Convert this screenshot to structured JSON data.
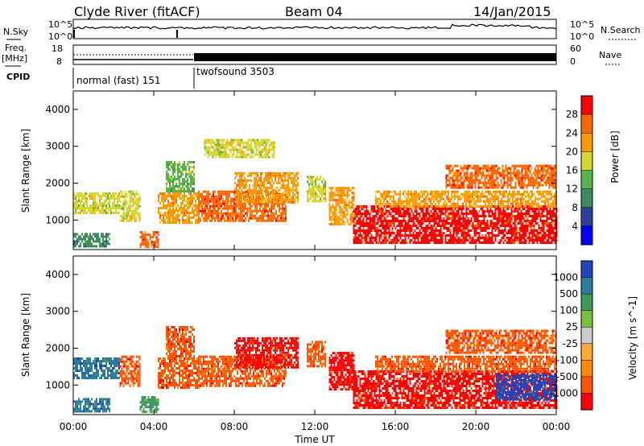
{
  "header": {
    "station": "Clyde River (fitACF)",
    "beam": "Beam 04",
    "date": "14/Jan/2015"
  },
  "top_panels": {
    "nsky_label": "N.Sky",
    "nsearch_label": "N.Search",
    "nsky_ticks": [
      "10^5",
      "10^0"
    ],
    "nsearch_ticks": [
      "10^5",
      "10^0"
    ],
    "freq_label_1": "Freq.",
    "freq_label_2": "[MHz]",
    "freq_ticks": [
      "18",
      "8"
    ],
    "nave_label": "Nave",
    "nave_ticks": [
      "60",
      "0"
    ],
    "cpid_label": "CPID",
    "cpid_modes": [
      {
        "name": "normal (fast) 151",
        "start_hour": 0,
        "end_hour": 6
      },
      {
        "name": "twofsound 3503",
        "start_hour": 6,
        "end_hour": 24
      }
    ]
  },
  "chart_data": [
    {
      "type": "heatmap",
      "title": "",
      "xlabel": "Time UT",
      "ylabel": "Slant Range [km]",
      "x_ticks": [
        "00:00",
        "04:00",
        "08:00",
        "12:00",
        "16:00",
        "20:00",
        "00:00"
      ],
      "y_ticks": [
        "1000",
        "2000",
        "3000",
        "4000"
      ],
      "xlim": [
        0,
        24
      ],
      "ylim": [
        200,
        4500
      ],
      "colorbar": {
        "label": "Power [dB]",
        "ticks": [
          "4",
          "8",
          "12",
          "16",
          "20",
          "24",
          "28"
        ],
        "range": [
          0,
          30
        ],
        "colors": [
          "#0000ff",
          "#2e3f9a",
          "#3f8a5c",
          "#58b34a",
          "#d6d633",
          "#ff9900",
          "#ff6600",
          "#ff0000"
        ]
      },
      "echo_regions": [
        {
          "t0": 0.0,
          "t1": 2.3,
          "r0": 1200,
          "r1": 1750,
          "value": 16
        },
        {
          "t0": 0.0,
          "t1": 1.8,
          "r0": 300,
          "r1": 650,
          "value": 10
        },
        {
          "t0": 2.3,
          "t1": 3.3,
          "r0": 1000,
          "r1": 1800,
          "value": 18
        },
        {
          "t0": 3.3,
          "t1": 4.2,
          "r0": 250,
          "r1": 700,
          "value": 26
        },
        {
          "t0": 4.2,
          "t1": 6.2,
          "r0": 900,
          "r1": 1750,
          "value": 22
        },
        {
          "t0": 4.6,
          "t1": 6.0,
          "r0": 1750,
          "r1": 2600,
          "value": 12
        },
        {
          "t0": 6.2,
          "t1": 10.6,
          "r0": 1000,
          "r1": 1800,
          "value": 24
        },
        {
          "t0": 8.0,
          "t1": 11.2,
          "r0": 1500,
          "r1": 2300,
          "value": 20
        },
        {
          "t0": 6.5,
          "t1": 10.0,
          "r0": 2700,
          "r1": 3200,
          "value": 18
        },
        {
          "t0": 11.6,
          "t1": 12.5,
          "r0": 1500,
          "r1": 2200,
          "value": 17
        },
        {
          "t0": 12.7,
          "t1": 13.9,
          "r0": 900,
          "r1": 1900,
          "value": 22
        },
        {
          "t0": 13.9,
          "t1": 24.0,
          "r0": 400,
          "r1": 1400,
          "value": 28
        },
        {
          "t0": 15.0,
          "t1": 24.0,
          "r0": 1400,
          "r1": 1800,
          "value": 20
        },
        {
          "t0": 18.5,
          "t1": 24.0,
          "r0": 1900,
          "r1": 2500,
          "value": 24
        }
      ]
    },
    {
      "type": "heatmap",
      "title": "",
      "xlabel": "Time UT",
      "ylabel": "Slant Range [km]",
      "x_ticks": [
        "00:00",
        "04:00",
        "08:00",
        "12:00",
        "16:00",
        "20:00",
        "00:00"
      ],
      "y_ticks": [
        "1000",
        "2000",
        "3000",
        "4000"
      ],
      "xlim": [
        0,
        24
      ],
      "ylim": [
        200,
        4500
      ],
      "colorbar": {
        "label": "Velocity [m s^-1]",
        "ticks": [
          "1000",
          "500",
          "100",
          "25",
          "-25",
          "-100",
          "-500",
          "-1000"
        ],
        "range": [
          -1000,
          1000
        ],
        "colors": [
          "#2244bb",
          "#2e7a9a",
          "#3f9a5c",
          "#77c13f",
          "#cccccc",
          "#ffaa33",
          "#ff8800",
          "#ff5500",
          "#ff0000"
        ]
      },
      "echo_regions": [
        {
          "t0": 0.0,
          "t1": 2.3,
          "r0": 1200,
          "r1": 1750,
          "value": 150
        },
        {
          "t0": 0.0,
          "t1": 1.8,
          "r0": 300,
          "r1": 650,
          "value": 60
        },
        {
          "t0": 2.3,
          "t1": 3.3,
          "r0": 1000,
          "r1": 1800,
          "value": -80
        },
        {
          "t0": 3.3,
          "t1": 4.2,
          "r0": 250,
          "r1": 700,
          "value": 40
        },
        {
          "t0": 4.2,
          "t1": 6.2,
          "r0": 900,
          "r1": 1750,
          "value": -150
        },
        {
          "t0": 4.6,
          "t1": 6.0,
          "r0": 1750,
          "r1": 2600,
          "value": -120
        },
        {
          "t0": 6.2,
          "t1": 10.6,
          "r0": 1000,
          "r1": 1800,
          "value": -200
        },
        {
          "t0": 8.0,
          "t1": 11.2,
          "r0": 1500,
          "r1": 2300,
          "value": -250
        },
        {
          "t0": 11.6,
          "t1": 12.5,
          "r0": 1500,
          "r1": 2200,
          "value": -200
        },
        {
          "t0": 12.7,
          "t1": 13.9,
          "r0": 900,
          "r1": 1900,
          "value": -300
        },
        {
          "t0": 13.9,
          "t1": 24.0,
          "r0": 400,
          "r1": 1400,
          "value": -700
        },
        {
          "t0": 15.0,
          "t1": 24.0,
          "r0": 1400,
          "r1": 1800,
          "value": -150
        },
        {
          "t0": 18.5,
          "t1": 24.0,
          "r0": 1900,
          "r1": 2500,
          "value": -60
        },
        {
          "t0": 21.0,
          "t1": 24.0,
          "r0": 600,
          "r1": 1300,
          "value": 300
        }
      ]
    }
  ]
}
